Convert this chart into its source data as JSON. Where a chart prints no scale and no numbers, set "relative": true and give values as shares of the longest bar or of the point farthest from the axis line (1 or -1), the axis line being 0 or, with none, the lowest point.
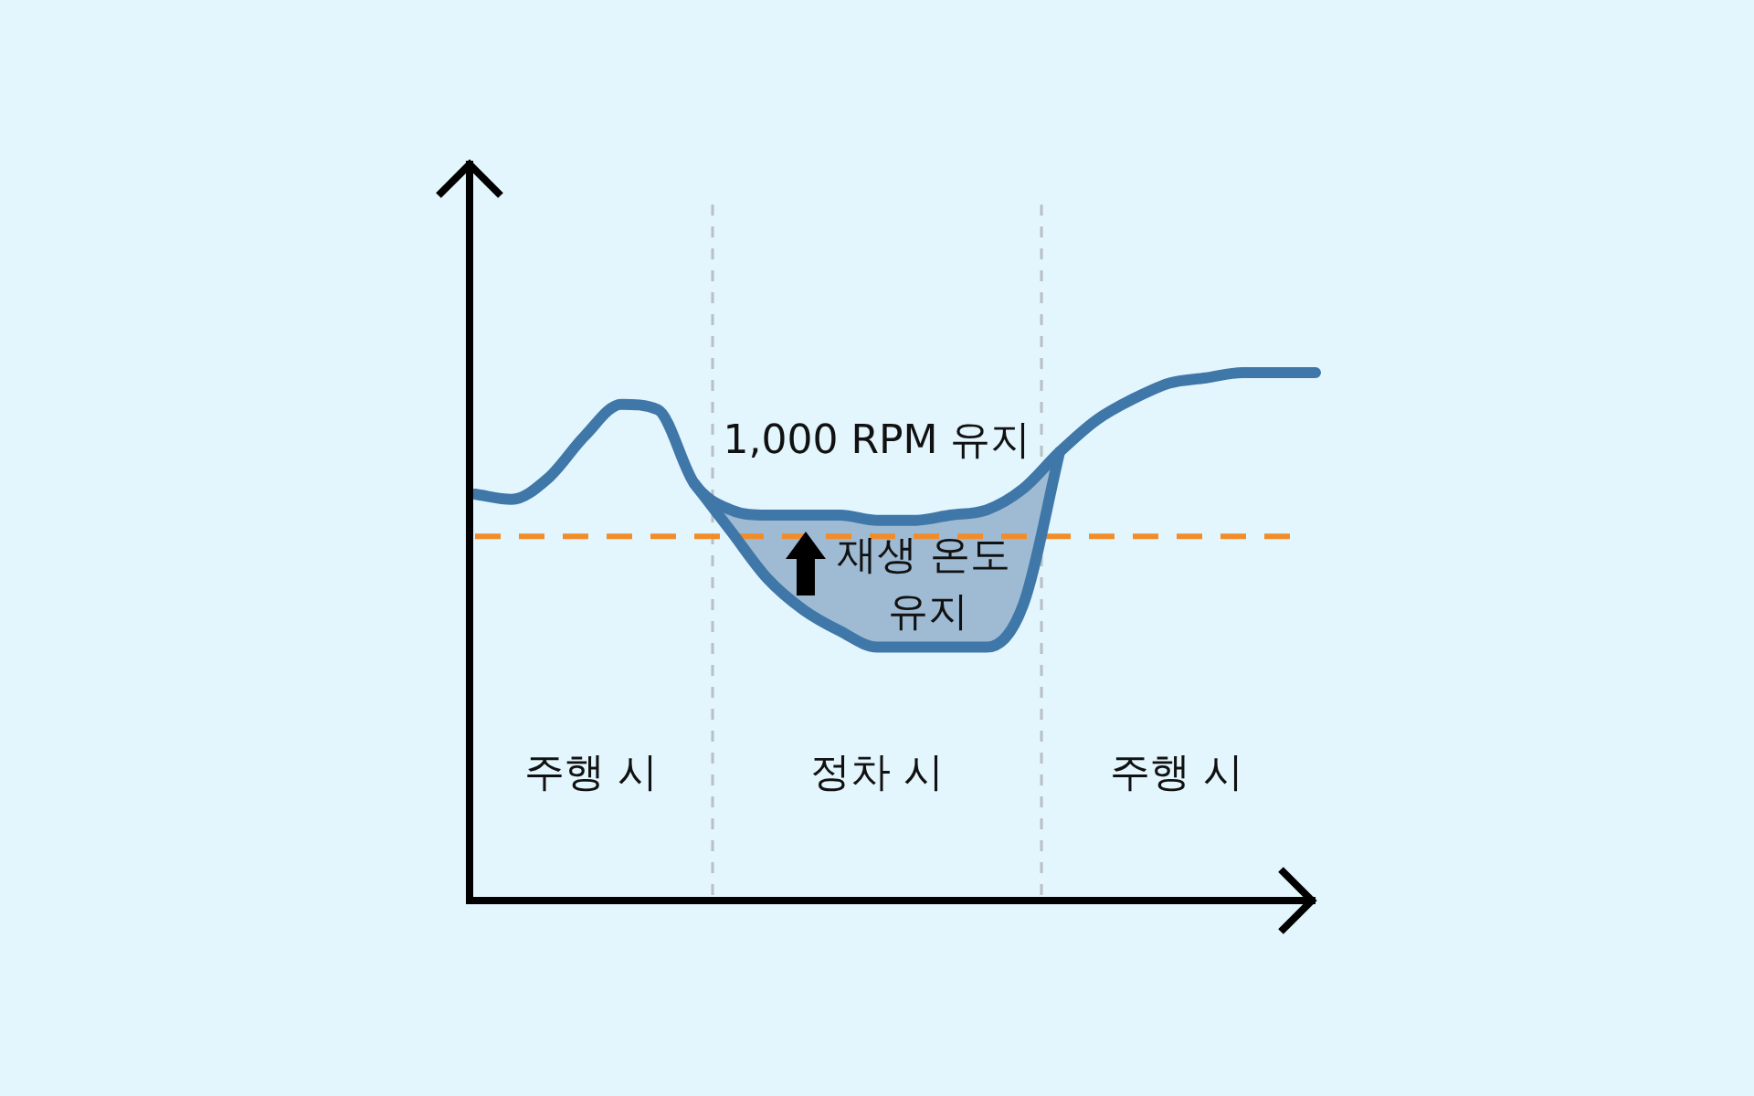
{
  "chart_data": {
    "type": "line",
    "relative": true,
    "categories": [
      null,
      null,
      null,
      null,
      null,
      null,
      null,
      null,
      null,
      null,
      null,
      null,
      null,
      null,
      null,
      null,
      null,
      null,
      null,
      null,
      null,
      null,
      null,
      null
    ],
    "series": [
      {
        "color": "#3f77a8",
        "values": [
          0.77,
          0.76,
          0.8,
          0.88,
          0.94,
          0.93,
          0.79,
          0.74,
          0.73,
          0.73,
          0.73,
          0.72,
          0.72,
          0.73,
          0.74,
          0.78,
          0.85,
          0.91,
          0.95,
          0.98,
          0.99,
          1.0,
          1.0,
          1.0
        ]
      },
      {
        "color": "#3f77a8",
        "values": [
          null,
          null,
          null,
          null,
          null,
          null,
          0.79,
          0.7,
          0.61,
          0.55,
          0.51,
          0.48,
          0.48,
          0.48,
          0.48,
          0.56,
          0.85,
          null,
          null,
          null,
          null,
          null,
          null,
          null
        ],
        "lower": [
          null,
          null,
          null,
          null,
          null,
          null,
          0.79,
          0.7,
          0.61,
          0.55,
          0.51,
          0.48,
          0.48,
          0.48,
          0.48,
          0.56,
          0.85,
          null,
          null,
          null,
          null,
          null,
          null,
          null
        ],
        "upper": [
          null,
          null,
          null,
          null,
          null,
          null,
          0.79,
          0.74,
          0.73,
          0.73,
          0.73,
          0.72,
          0.72,
          0.73,
          0.74,
          0.78,
          0.85,
          null,
          null,
          null,
          null,
          null,
          null,
          null
        ]
      }
    ],
    "ref_lines": [
      {
        "axis": "y",
        "value": 0.69,
        "color": "#f28c28",
        "line_style": "dashed"
      }
    ],
    "annotations": [
      "1,000 RPM 유지",
      "재생 온도 유지",
      "주행 시",
      "정차 시",
      "주행 시"
    ]
  }
}
